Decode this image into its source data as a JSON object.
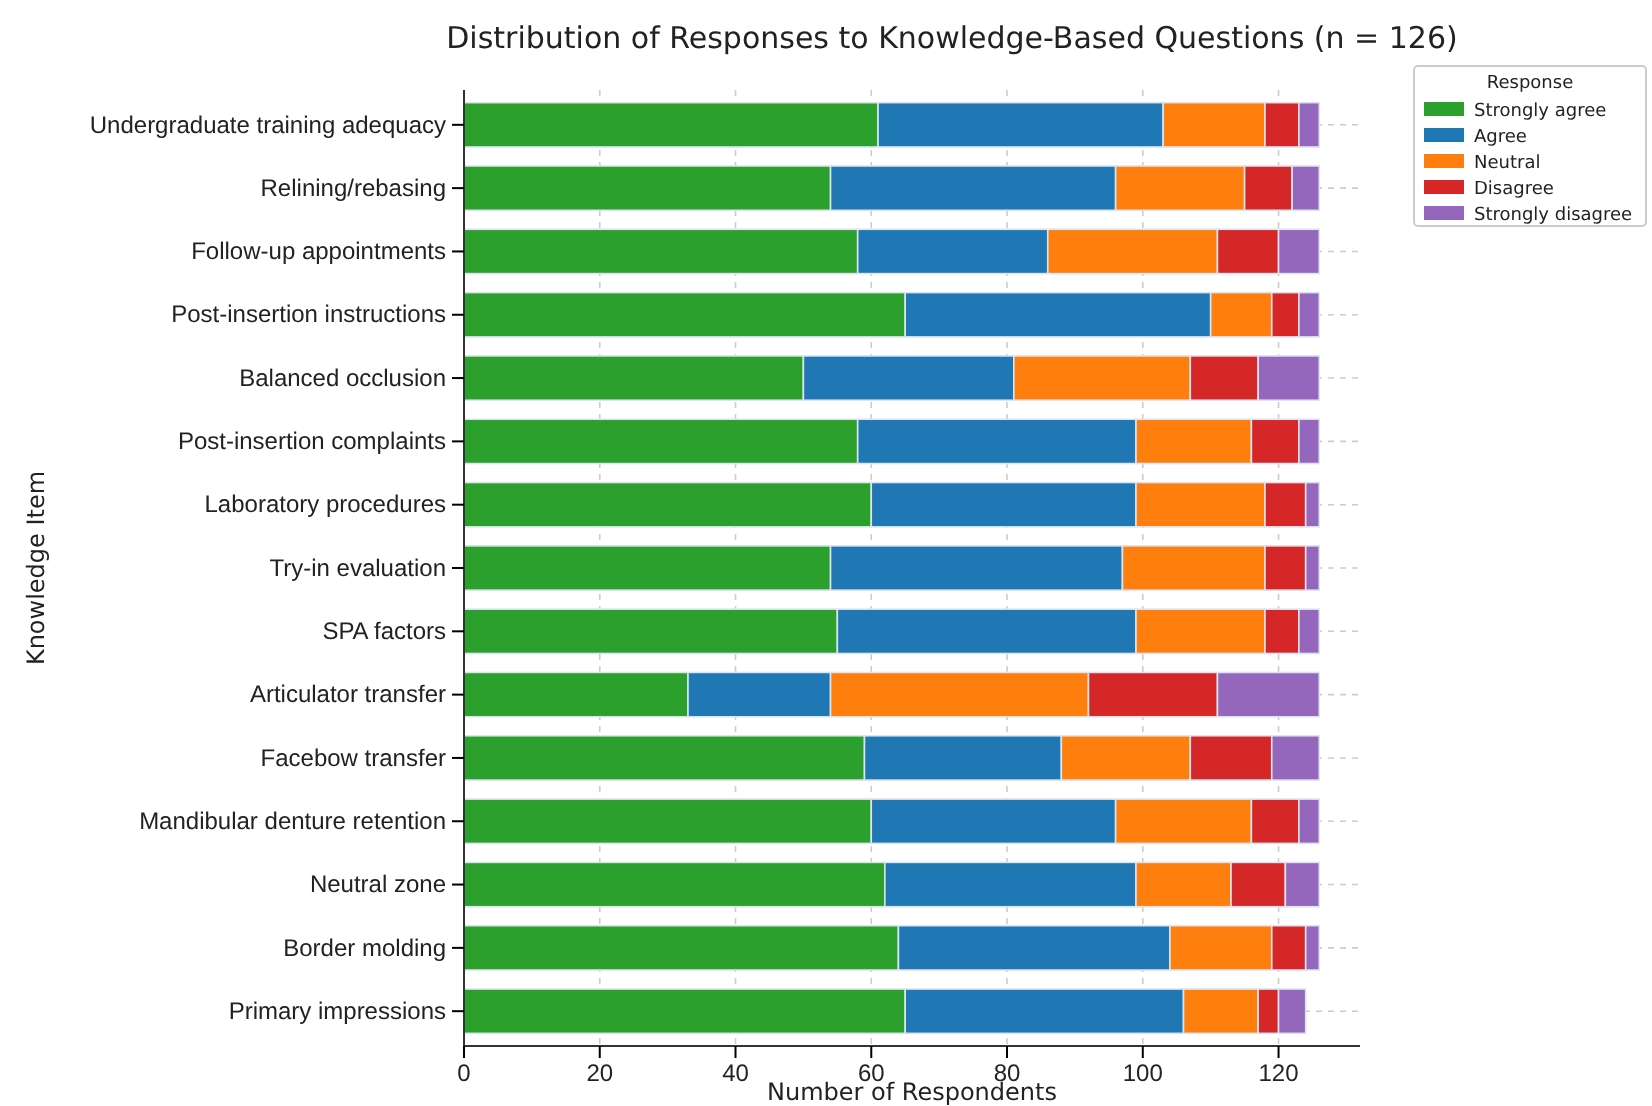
{
  "chart_data": {
    "type": "bar",
    "orientation": "horizontal",
    "stacked": true,
    "title": "Distribution of Responses to Knowledge-Based Questions (n = 126)",
    "xlabel": "Number of Respondents",
    "ylabel": "Knowledge Item",
    "legend_title": "Response",
    "legend": "top right",
    "grid": true,
    "categories": [
      "Undergraduate training adequacy",
      "Relining/rebasing",
      "Follow-up appointments",
      "Post-insertion instructions",
      "Balanced occlusion",
      "Post-insertion complaints",
      "Laboratory procedures",
      "Try-in evaluation",
      "SPA factors",
      "Articulator transfer",
      "Facebow transfer",
      "Mandibular denture retention",
      "Neutral zone",
      "Border molding",
      "Primary impressions"
    ],
    "xlim": [
      0,
      132
    ],
    "xticks": [
      0,
      20,
      40,
      60,
      80,
      100,
      120
    ],
    "series": [
      {
        "name": "Strongly agree",
        "color": "#2ca02c",
        "values": [
          61,
          54,
          58,
          65,
          50,
          58,
          60,
          54,
          55,
          33,
          59,
          60,
          62,
          64,
          65
        ]
      },
      {
        "name": "Agree",
        "color": "#1f77b4",
        "values": [
          42,
          42,
          28,
          45,
          31,
          41,
          39,
          43,
          44,
          21,
          29,
          36,
          37,
          40,
          41
        ]
      },
      {
        "name": "Neutral",
        "color": "#ff7f0e",
        "values": [
          15,
          19,
          25,
          9,
          26,
          17,
          19,
          21,
          19,
          38,
          19,
          20,
          14,
          15,
          11
        ]
      },
      {
        "name": "Disagree",
        "color": "#d62728",
        "values": [
          5,
          7,
          9,
          4,
          10,
          7,
          6,
          6,
          5,
          19,
          12,
          7,
          8,
          5,
          3
        ]
      },
      {
        "name": "Strongly disagree",
        "color": "#9467bd",
        "values": [
          3,
          4,
          6,
          3,
          9,
          3,
          2,
          2,
          3,
          15,
          7,
          3,
          5,
          2,
          4
        ]
      }
    ]
  }
}
